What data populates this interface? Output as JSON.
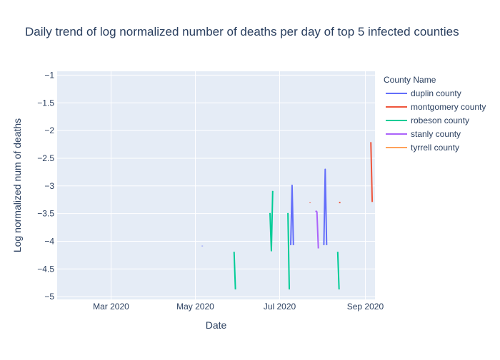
{
  "chart_data": {
    "type": "line",
    "title": "Daily trend of log normalized number of deaths per day of top 5 infected counties",
    "xlabel": "Date",
    "ylabel": "Log normalized num of deaths",
    "legend_title": "County Name",
    "legend_position": "top-right",
    "grid": true,
    "xlim": [
      "2020-01-22",
      "2020-09-08"
    ],
    "ylim": [
      -5.05,
      -0.93
    ],
    "x_ticks": [
      {
        "date": "2020-03-01",
        "label": "Mar 2020"
      },
      {
        "date": "2020-05-01",
        "label": "May 2020"
      },
      {
        "date": "2020-07-01",
        "label": "Jul 2020"
      },
      {
        "date": "2020-09-01",
        "label": "Sep 2020"
      }
    ],
    "y_ticks": [
      {
        "value": -1,
        "label": "−1"
      },
      {
        "value": -1.5,
        "label": "−1.5"
      },
      {
        "value": -2,
        "label": "−2"
      },
      {
        "value": -2.5,
        "label": "−2.5"
      },
      {
        "value": -3,
        "label": "−3"
      },
      {
        "value": -3.5,
        "label": "−3.5"
      },
      {
        "value": -4,
        "label": "−4"
      },
      {
        "value": -4.5,
        "label": "−4.5"
      },
      {
        "value": -5,
        "label": "−5"
      }
    ],
    "series": [
      {
        "name": "duplin county",
        "color": "#636efa",
        "segments": [
          [
            [
              "2020-05-06",
              -4.08
            ],
            [
              "2020-05-06",
              -4.09
            ]
          ],
          [
            [
              "2020-07-09",
              -4.07
            ],
            [
              "2020-07-10",
              -2.99
            ],
            [
              "2020-07-11",
              -4.07
            ]
          ],
          [
            [
              "2020-08-02",
              -4.07
            ],
            [
              "2020-08-03",
              -2.7
            ],
            [
              "2020-08-04",
              -4.07
            ]
          ]
        ]
      },
      {
        "name": "montgomery county",
        "color": "#EF553B",
        "segments": [
          [
            [
              "2020-07-23",
              -3.3
            ],
            [
              "2020-07-23",
              -3.31
            ]
          ],
          [
            [
              "2020-08-13",
              -3.3
            ],
            [
              "2020-08-14",
              -3.3
            ]
          ],
          [
            [
              "2020-09-05",
              -2.21
            ],
            [
              "2020-09-06",
              -3.29
            ]
          ]
        ]
      },
      {
        "name": "robeson county",
        "color": "#00cc96",
        "segments": [
          [
            [
              "2020-05-29",
              -4.19
            ],
            [
              "2020-05-30",
              -4.87
            ]
          ],
          [
            [
              "2020-06-24",
              -3.49
            ],
            [
              "2020-06-25",
              -4.17
            ],
            [
              "2020-06-26",
              -3.09
            ]
          ],
          [
            [
              "2020-07-07",
              -3.49
            ],
            [
              "2020-07-08",
              -4.87
            ]
          ],
          [
            [
              "2020-08-12",
              -4.19
            ],
            [
              "2020-08-13",
              -4.87
            ]
          ]
        ]
      },
      {
        "name": "stanly county",
        "color": "#ab63fa",
        "segments": [
          [
            [
              "2020-07-27",
              -3.45
            ],
            [
              "2020-07-28",
              -3.47
            ],
            [
              "2020-07-29",
              -4.13
            ]
          ]
        ]
      },
      {
        "name": "tyrrell county",
        "color": "#FFA15A",
        "segments": []
      }
    ]
  }
}
